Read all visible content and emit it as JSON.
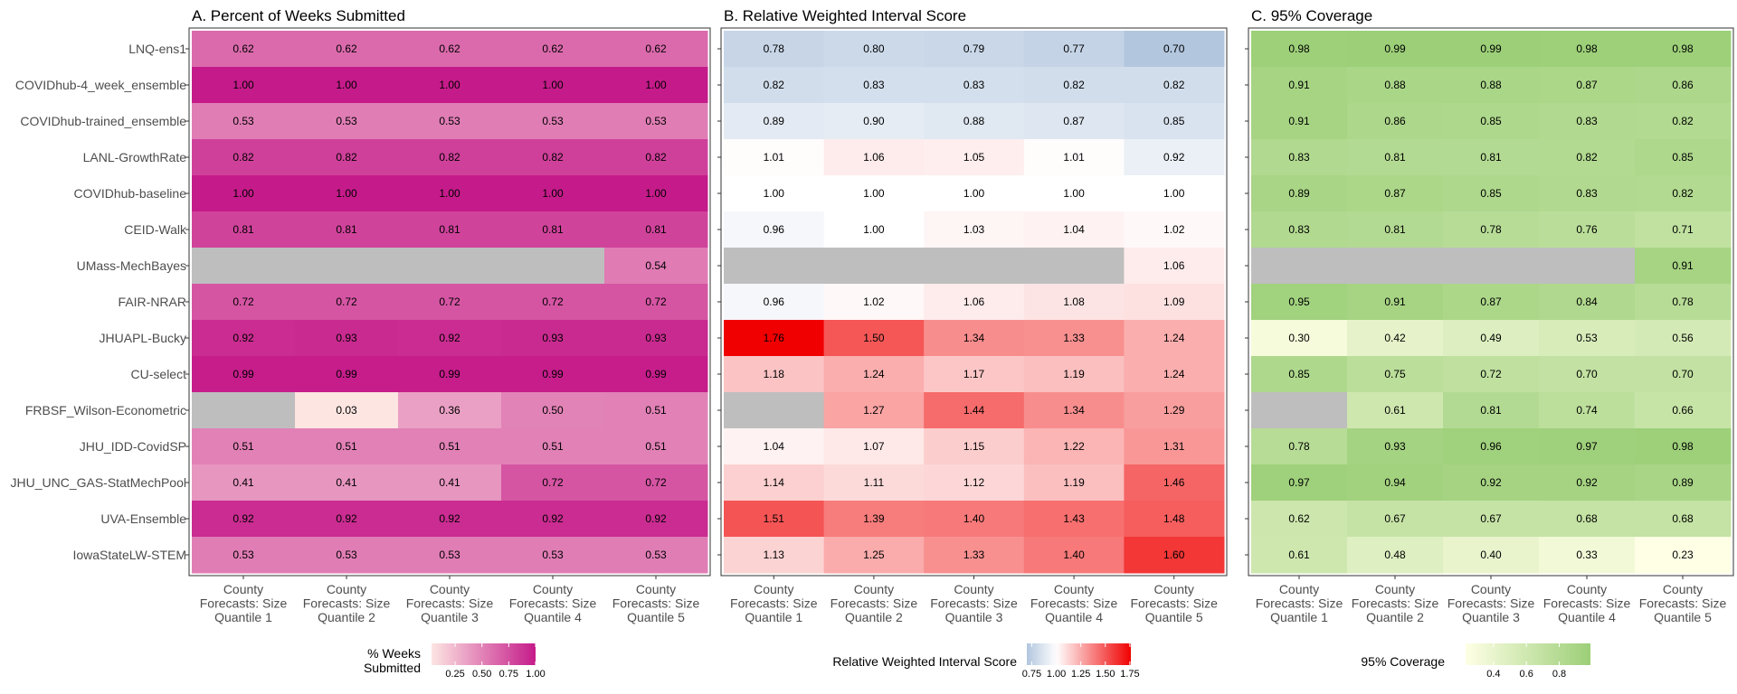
{
  "models": [
    "LNQ-ens1",
    "COVIDhub-4_week_ensemble",
    "COVIDhub-trained_ensemble",
    "LANL-GrowthRate",
    "COVIDhub-baseline",
    "CEID-Walk",
    "UMass-MechBayes",
    "FAIR-NRAR",
    "JHUAPL-Bucky",
    "CU-select",
    "FRBSF_Wilson-Econometric",
    "JHU_IDD-CovidSP",
    "JHU_UNC_GAS-StatMechPool",
    "UVA-Ensemble",
    "IowaStateLW-STEM"
  ],
  "quantiles": [
    [
      "County",
      "Forecasts: Size",
      "Quantile 1"
    ],
    [
      "County",
      "Forecasts: Size",
      "Quantile 2"
    ],
    [
      "County",
      "Forecasts: Size",
      "Quantile 3"
    ],
    [
      "County",
      "Forecasts: Size",
      "Quantile 4"
    ],
    [
      "County",
      "Forecasts: Size",
      "Quantile 5"
    ]
  ],
  "chart_data": [
    {
      "type": "heatmap",
      "title": "A. Percent of Weeks Submitted",
      "legend": {
        "title": [
          "% Weeks",
          "Submitted"
        ],
        "ticks": [
          "0.25",
          "0.50",
          "0.75",
          "1.00"
        ],
        "range": [
          0.03,
          1.0
        ],
        "placement": "bottom"
      },
      "colors": {
        "low": "#fde5e2",
        "high": "#c51b8a",
        "missing": "#bebebe"
      },
      "values": [
        [
          0.62,
          0.62,
          0.62,
          0.62,
          0.62
        ],
        [
          1.0,
          1.0,
          1.0,
          1.0,
          1.0
        ],
        [
          0.53,
          0.53,
          0.53,
          0.53,
          0.53
        ],
        [
          0.82,
          0.82,
          0.82,
          0.82,
          0.82
        ],
        [
          1.0,
          1.0,
          1.0,
          1.0,
          1.0
        ],
        [
          0.81,
          0.81,
          0.81,
          0.81,
          0.81
        ],
        [
          null,
          null,
          null,
          null,
          0.54
        ],
        [
          0.72,
          0.72,
          0.72,
          0.72,
          0.72
        ],
        [
          0.92,
          0.93,
          0.92,
          0.93,
          0.93
        ],
        [
          0.99,
          0.99,
          0.99,
          0.99,
          0.99
        ],
        [
          null,
          0.03,
          0.36,
          0.5,
          0.51
        ],
        [
          0.51,
          0.51,
          0.51,
          0.51,
          0.51
        ],
        [
          0.41,
          0.41,
          0.41,
          0.72,
          0.72
        ],
        [
          0.92,
          0.92,
          0.92,
          0.92,
          0.92
        ],
        [
          0.53,
          0.53,
          0.53,
          0.53,
          0.53
        ]
      ]
    },
    {
      "type": "heatmap",
      "title": "B. Relative Weighted Interval Score",
      "legend": {
        "title": [
          "Relative Weighted Interval Score"
        ],
        "ticks": [
          "0.75",
          "1.00",
          "1.25",
          "1.50",
          "1.75"
        ],
        "range": [
          0.7,
          1.76
        ],
        "placement": "bottom"
      },
      "colors": {
        "low": "#b2c6de",
        "mid": "#ffffff",
        "high": "#f00000",
        "missing": "#bebebe"
      },
      "values": [
        [
          0.78,
          0.8,
          0.79,
          0.77,
          0.7
        ],
        [
          0.82,
          0.83,
          0.83,
          0.82,
          0.82
        ],
        [
          0.89,
          0.9,
          0.88,
          0.87,
          0.85
        ],
        [
          1.01,
          1.06,
          1.05,
          1.01,
          0.92
        ],
        [
          1.0,
          1.0,
          1.0,
          1.0,
          1.0
        ],
        [
          0.96,
          1.0,
          1.03,
          1.04,
          1.02
        ],
        [
          null,
          null,
          null,
          null,
          1.06
        ],
        [
          0.96,
          1.02,
          1.06,
          1.08,
          1.09
        ],
        [
          1.76,
          1.5,
          1.34,
          1.33,
          1.24
        ],
        [
          1.18,
          1.24,
          1.17,
          1.19,
          1.24
        ],
        [
          null,
          1.27,
          1.44,
          1.34,
          1.29
        ],
        [
          1.04,
          1.07,
          1.15,
          1.22,
          1.31
        ],
        [
          1.14,
          1.11,
          1.12,
          1.19,
          1.46
        ],
        [
          1.51,
          1.39,
          1.4,
          1.43,
          1.48
        ],
        [
          1.13,
          1.25,
          1.33,
          1.4,
          1.6
        ]
      ]
    },
    {
      "type": "heatmap",
      "title": "C. 95% Coverage",
      "legend": {
        "title": [
          "95% Coverage"
        ],
        "ticks": [
          "0.4",
          "0.6",
          "0.8"
        ],
        "range": [
          0.23,
          0.99
        ],
        "placement": "bottom"
      },
      "colors": {
        "low": "#ffffe5",
        "high": "#9ccf78",
        "missing": "#bebebe"
      },
      "values": [
        [
          0.98,
          0.99,
          0.99,
          0.98,
          0.98
        ],
        [
          0.91,
          0.88,
          0.88,
          0.87,
          0.86
        ],
        [
          0.91,
          0.86,
          0.85,
          0.83,
          0.82
        ],
        [
          0.83,
          0.81,
          0.81,
          0.82,
          0.85
        ],
        [
          0.89,
          0.87,
          0.85,
          0.83,
          0.82
        ],
        [
          0.83,
          0.81,
          0.78,
          0.76,
          0.71
        ],
        [
          null,
          null,
          null,
          null,
          0.91
        ],
        [
          0.95,
          0.91,
          0.87,
          0.84,
          0.78
        ],
        [
          0.3,
          0.42,
          0.49,
          0.53,
          0.56
        ],
        [
          0.85,
          0.75,
          0.72,
          0.7,
          0.7
        ],
        [
          null,
          0.61,
          0.81,
          0.74,
          0.66
        ],
        [
          0.78,
          0.93,
          0.96,
          0.97,
          0.98
        ],
        [
          0.97,
          0.94,
          0.92,
          0.92,
          0.89
        ],
        [
          0.62,
          0.67,
          0.67,
          0.68,
          0.68
        ],
        [
          0.61,
          0.48,
          0.4,
          0.33,
          0.23
        ]
      ]
    }
  ]
}
